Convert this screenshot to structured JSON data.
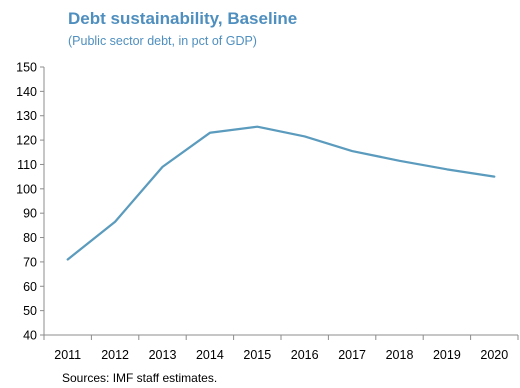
{
  "chart_data": {
    "type": "line",
    "title": "Debt sustainability,  Baseline",
    "subtitle": "(Public sector debt, in pct of GDP)",
    "xlabel": "",
    "ylabel": "",
    "categories": [
      "2011",
      "2012",
      "2013",
      "2014",
      "2015",
      "2016",
      "2017",
      "2018",
      "2019",
      "2020"
    ],
    "series": [
      {
        "values": [
          71,
          86.5,
          109,
          123,
          125.5,
          121.5,
          115.5,
          111.5,
          108,
          105
        ],
        "color": "#5b9bbd"
      }
    ],
    "ylim": [
      40,
      150
    ],
    "yticks": [
      40,
      50,
      60,
      70,
      80,
      90,
      100,
      110,
      120,
      130,
      140,
      150
    ],
    "grid": false,
    "legend": "none",
    "source": "Sources: IMF staff estimates."
  }
}
